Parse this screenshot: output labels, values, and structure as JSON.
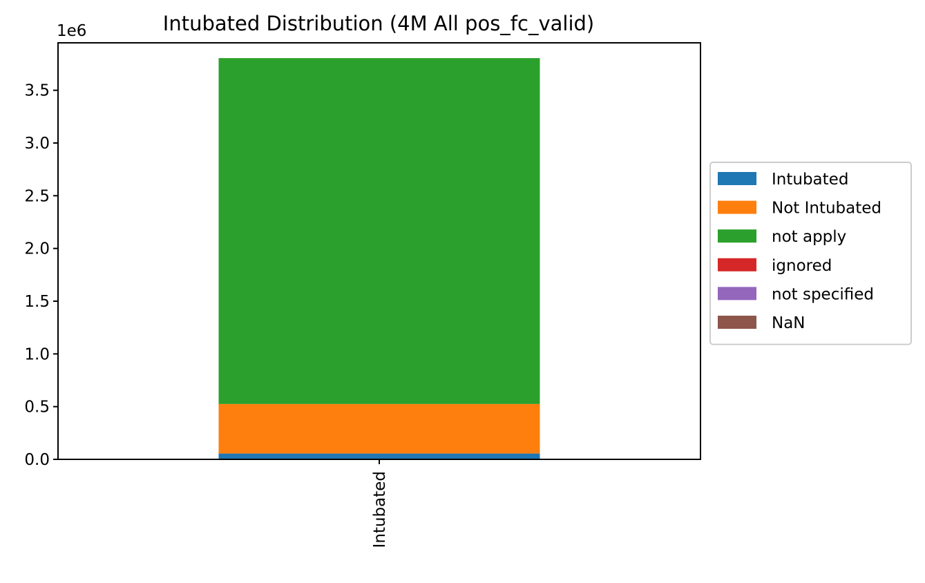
{
  "chart_data": {
    "type": "bar",
    "stacked": true,
    "title": "Intubated Distribution (4M All pos_fc_valid)",
    "xlabel": "",
    "ylabel": "",
    "categories": [
      "Intubated"
    ],
    "y_offset_label": "1e6",
    "y_scale": 1000000,
    "ylim": [
      0,
      3.95
    ],
    "yticks": [
      0.0,
      0.5,
      1.0,
      1.5,
      2.0,
      2.5,
      3.0,
      3.5
    ],
    "ytick_labels": [
      "0.0",
      "0.5",
      "1.0",
      "1.5",
      "2.0",
      "2.5",
      "3.0",
      "3.5"
    ],
    "grid": false,
    "legend_position": "right-center",
    "series": [
      {
        "name": "Intubated",
        "color": "#1f77b4",
        "values": [
          0.055
        ]
      },
      {
        "name": "Not Intubated",
        "color": "#ff7f0e",
        "values": [
          0.47
        ]
      },
      {
        "name": "not apply",
        "color": "#2ca02c",
        "values": [
          3.28
        ]
      },
      {
        "name": "ignored",
        "color": "#d62728",
        "values": [
          0.0
        ]
      },
      {
        "name": "not specified",
        "color": "#9467bd",
        "values": [
          0.0
        ]
      },
      {
        "name": "NaN",
        "color": "#8c564b",
        "values": [
          0.0
        ]
      }
    ]
  }
}
